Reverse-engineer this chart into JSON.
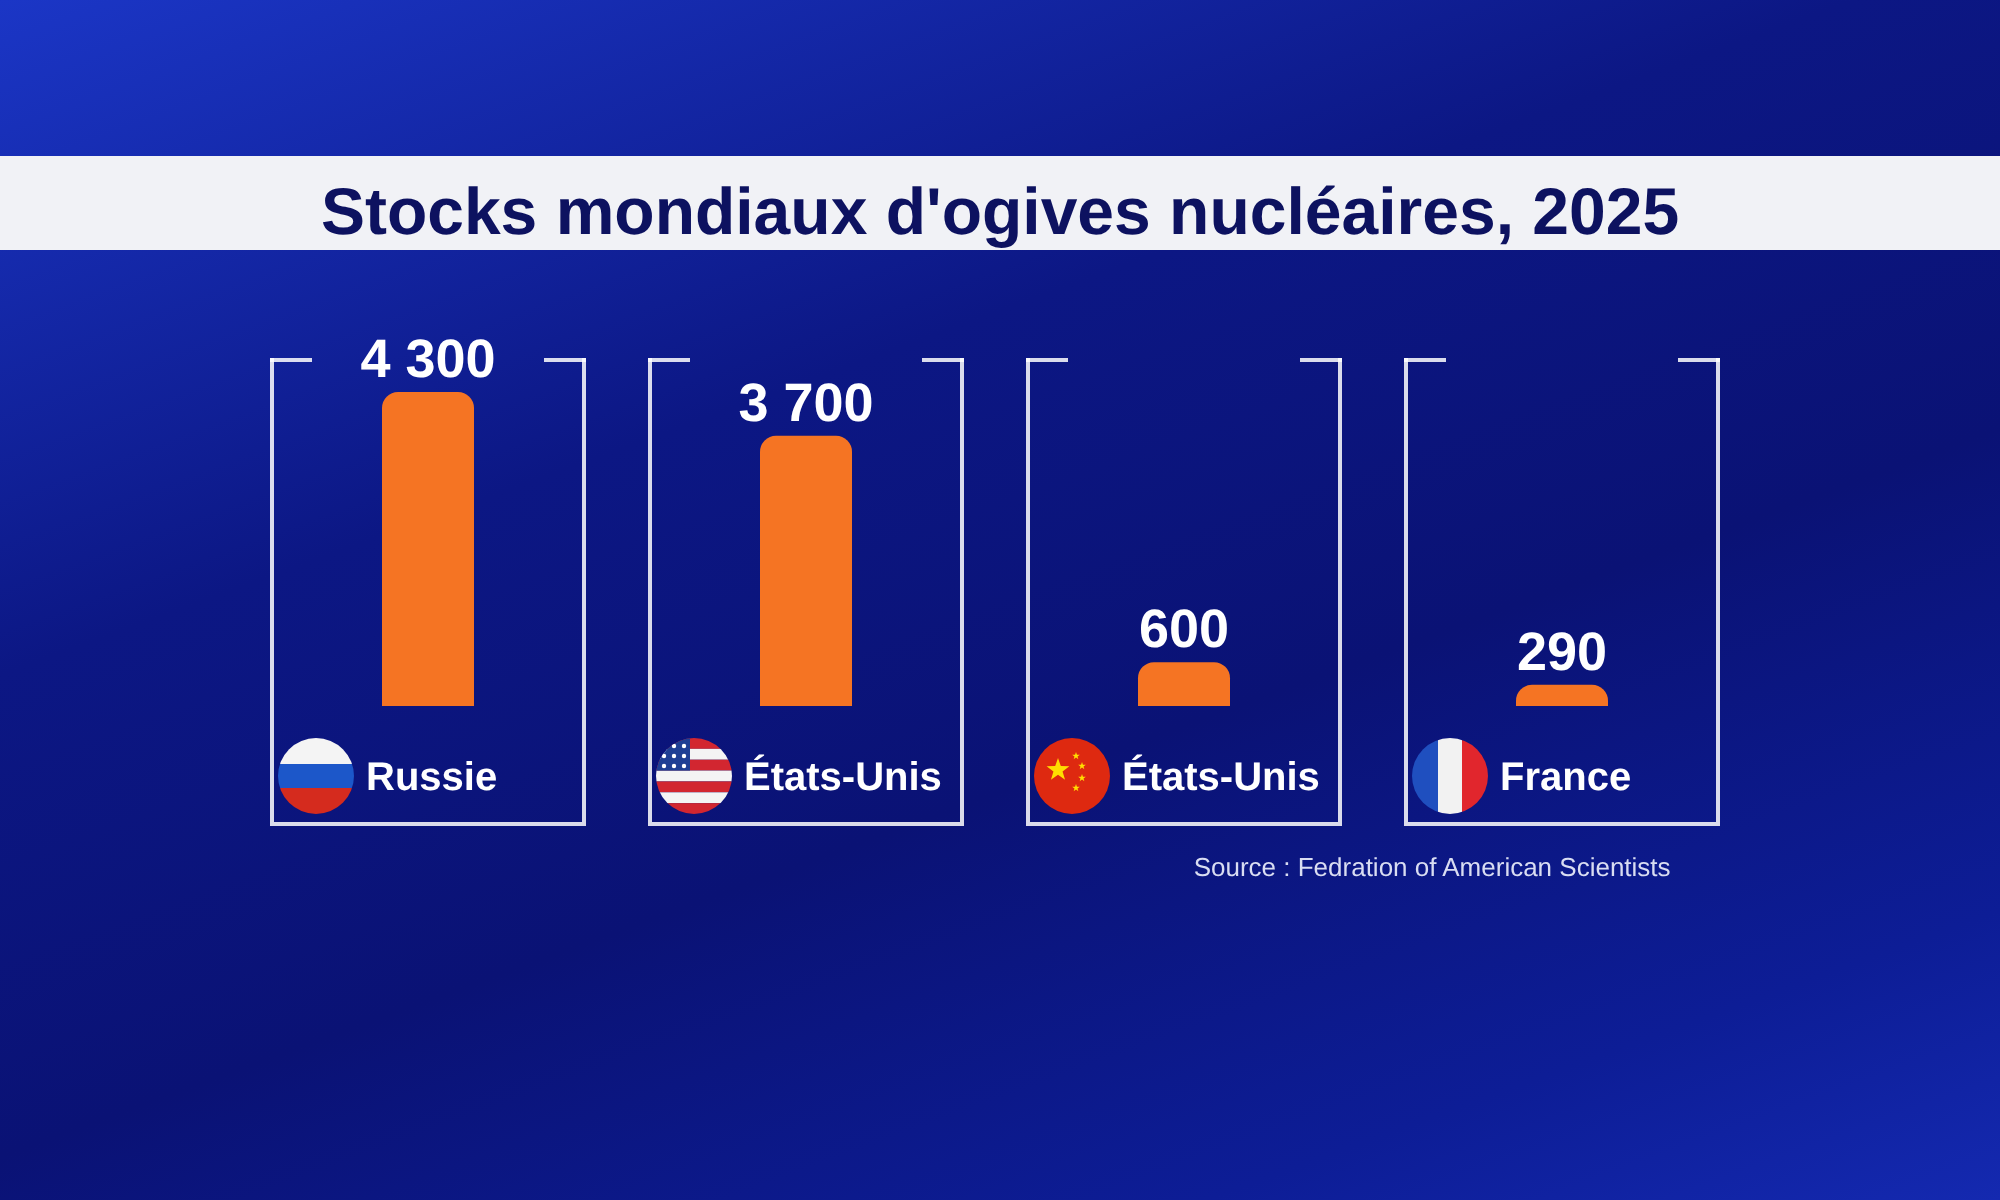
{
  "chart_data": {
    "type": "bar",
    "title": "Stocks mondiaux d'ogives nucléaires, 2025",
    "categories": [
      "Russie",
      "États-Unis",
      "États-Unis",
      "France"
    ],
    "values": [
      4300,
      3700,
      600,
      290
    ],
    "color": "#f57423",
    "value_labels": [
      "4 300",
      "3 700",
      "600",
      "290"
    ],
    "tick_labels": "x",
    "annotations": [
      "Source : Fedration of American Scientists"
    ]
  }
}
